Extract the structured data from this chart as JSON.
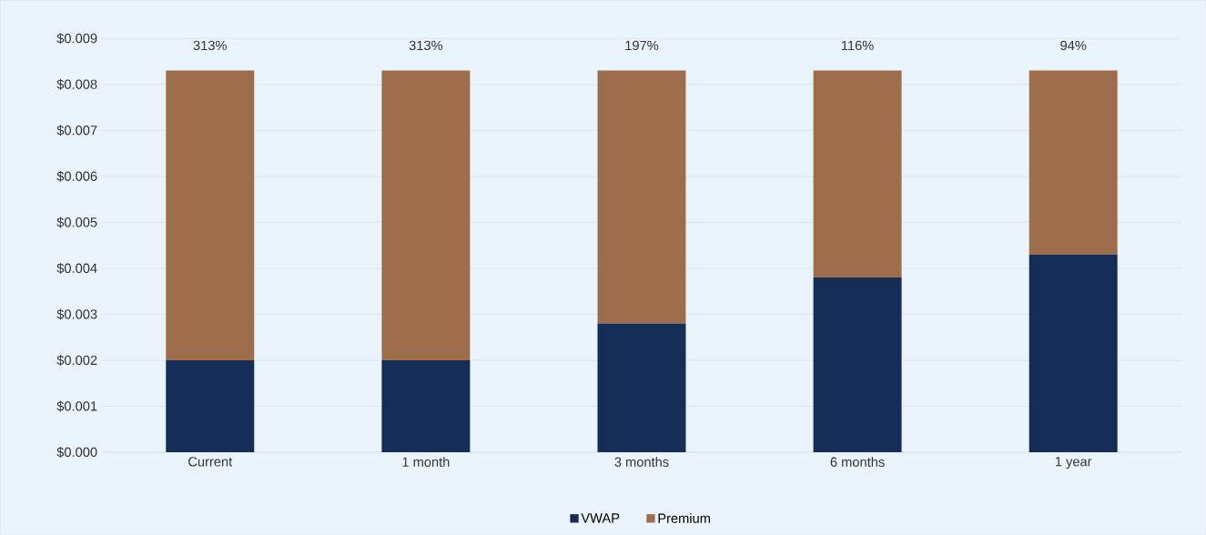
{
  "chart_data": {
    "type": "bar",
    "stacked": true,
    "categories": [
      "Current",
      "1 month",
      "3 months",
      "6 months",
      "1 year"
    ],
    "series": [
      {
        "name": "VWAP",
        "color": "#132d57",
        "values": [
          0.002,
          0.002,
          0.0028,
          0.0038,
          0.0043
        ]
      },
      {
        "name": "Premium",
        "color": "#9e6d4b",
        "values": [
          0.0063,
          0.0063,
          0.0055,
          0.0045,
          0.004
        ]
      }
    ],
    "ylim": [
      0,
      0.009
    ],
    "yticks": [
      {
        "value": 0,
        "label": "$0.000"
      },
      {
        "value": 0.001,
        "label": "$0.001"
      },
      {
        "value": 0.002,
        "label": "$0.002"
      },
      {
        "value": 0.003,
        "label": "$0.003"
      },
      {
        "value": 0.004,
        "label": "$0.004"
      },
      {
        "value": 0.005,
        "label": "$0.005"
      },
      {
        "value": 0.006,
        "label": "$0.006"
      },
      {
        "value": 0.007,
        "label": "$0.007"
      },
      {
        "value": 0.008,
        "label": "$0.008"
      },
      {
        "value": 0.009,
        "label": "$0.009"
      }
    ],
    "annotations": [
      "313%",
      "313%",
      "197%",
      "116%",
      "94%"
    ],
    "grid": "y",
    "legend": "bottom"
  }
}
